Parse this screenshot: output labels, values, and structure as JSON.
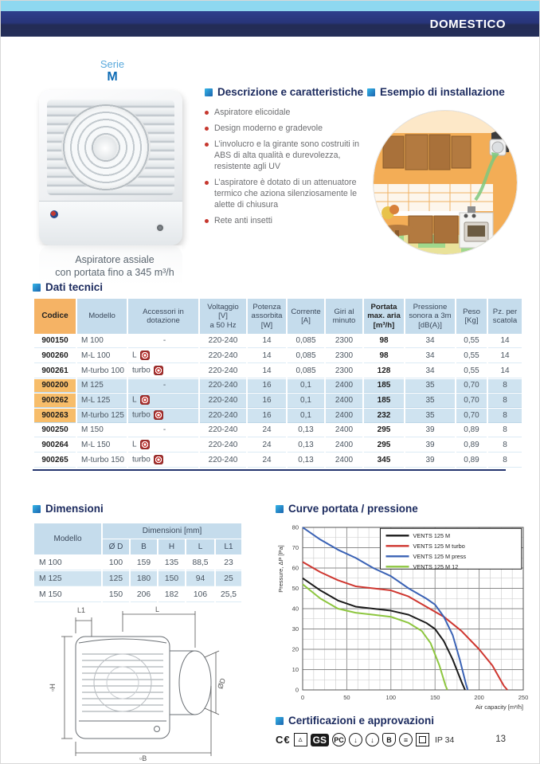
{
  "page": {
    "tag": "DOMESTICO",
    "number": "13"
  },
  "product": {
    "serie_label": "Serie",
    "serie_value": "M",
    "caption_line1": "Aspiratore assiale",
    "caption_line2": "con portata fino a 345 m³/h"
  },
  "sections": {
    "description": {
      "title": "Descrizione e caratteristiche",
      "bullets": [
        "Aspiratore elicoidale",
        "Design moderno e gradevole",
        "L’involucro e la girante sono costruiti in ABS di alta qualità e durevolezza, resistente agli UV",
        "L’aspiratore è dotato di un attenuatore termico che aziona silenziosamente le alette di chiusura",
        "Rete anti insetti"
      ]
    },
    "installation": {
      "title": "Esempio di installazione"
    },
    "technical": {
      "title": "Dati tecnici"
    },
    "dimensions": {
      "title": "Dimensioni"
    },
    "curves": {
      "title": "Curve portata / pressione"
    },
    "certifications": {
      "title": "Certificazioni e approvazioni",
      "marks": [
        {
          "name": "ce-mark",
          "glyph": "C€",
          "shape": "text"
        },
        {
          "name": "triangle-square-mark",
          "glyph": "▵",
          "shape": "square"
        },
        {
          "name": "gs-mark",
          "glyph": "GS",
          "shape": "text-bold"
        },
        {
          "name": "pct-mark",
          "glyph": "PC",
          "shape": "circle"
        },
        {
          "name": "down-arrow-mark-1",
          "glyph": "↓",
          "shape": "circle"
        },
        {
          "name": "down-arrow-mark-2",
          "glyph": "↓",
          "shape": "circle"
        },
        {
          "name": "b-shield-mark",
          "glyph": "B",
          "shape": "shield"
        },
        {
          "name": "coil-mark",
          "glyph": "≡",
          "shape": "circle"
        },
        {
          "name": "double-square-mark",
          "glyph": "",
          "shape": "square-double"
        },
        {
          "name": "ip-rating",
          "glyph": "IP 34",
          "shape": "plain"
        }
      ]
    }
  },
  "tech_table": {
    "headers": [
      "Codice",
      "Modello",
      "Accessori in\ndotazione",
      "Voltaggio\n[V]\na 50 Hz",
      "Potenza\nassorbita\n[W]",
      "Corrente\n[A]",
      "Giri al\nminuto",
      "Portata\nmax. aria\n[m³/h]",
      "Pressione\nsonora a 3m\n[dB(A)]",
      "Peso\n[Kg]",
      "Pz. per\nscatola"
    ],
    "rows": [
      {
        "code": "900150",
        "model": "M 100",
        "accessory": "-",
        "chip": false,
        "voltage": "220-240",
        "power": "14",
        "current": "0,085",
        "rpm": "2300",
        "flow": "98",
        "noise": "34",
        "weight": "0,55",
        "pieces": "14",
        "highlighted": false
      },
      {
        "code": "900260",
        "model": "M-L 100",
        "accessory": "L",
        "chip": true,
        "voltage": "220-240",
        "power": "14",
        "current": "0,085",
        "rpm": "2300",
        "flow": "98",
        "noise": "34",
        "weight": "0,55",
        "pieces": "14",
        "highlighted": false
      },
      {
        "code": "900261",
        "model": "M-turbo 100",
        "accessory": "turbo",
        "chip": true,
        "voltage": "220-240",
        "power": "14",
        "current": "0,085",
        "rpm": "2300",
        "flow": "128",
        "noise": "34",
        "weight": "0,55",
        "pieces": "14",
        "highlighted": false
      },
      {
        "code": "900200",
        "model": "M 125",
        "accessory": "-",
        "chip": false,
        "voltage": "220-240",
        "power": "16",
        "current": "0,1",
        "rpm": "2400",
        "flow": "185",
        "noise": "35",
        "weight": "0,70",
        "pieces": "8",
        "highlighted": true
      },
      {
        "code": "900262",
        "model": "M-L 125",
        "accessory": "L",
        "chip": true,
        "voltage": "220-240",
        "power": "16",
        "current": "0,1",
        "rpm": "2400",
        "flow": "185",
        "noise": "35",
        "weight": "0,70",
        "pieces": "8",
        "highlighted": true
      },
      {
        "code": "900263",
        "model": "M-turbo 125",
        "accessory": "turbo",
        "chip": true,
        "voltage": "220-240",
        "power": "16",
        "current": "0,1",
        "rpm": "2400",
        "flow": "232",
        "noise": "35",
        "weight": "0,70",
        "pieces": "8",
        "highlighted": true
      },
      {
        "code": "900250",
        "model": "M 150",
        "accessory": "-",
        "chip": false,
        "voltage": "220-240",
        "power": "24",
        "current": "0,13",
        "rpm": "2400",
        "flow": "295",
        "noise": "39",
        "weight": "0,89",
        "pieces": "8",
        "highlighted": false
      },
      {
        "code": "900264",
        "model": "M-L 150",
        "accessory": "L",
        "chip": true,
        "voltage": "220-240",
        "power": "24",
        "current": "0,13",
        "rpm": "2400",
        "flow": "295",
        "noise": "39",
        "weight": "0,89",
        "pieces": "8",
        "highlighted": false
      },
      {
        "code": "900265",
        "model": "M-turbo 150",
        "accessory": "turbo",
        "chip": true,
        "voltage": "220-240",
        "power": "24",
        "current": "0,13",
        "rpm": "2400",
        "flow": "345",
        "noise": "39",
        "weight": "0,89",
        "pieces": "8",
        "highlighted": false
      }
    ]
  },
  "dim_table": {
    "model_header": "Modello",
    "group_header": "Dimensioni [mm]",
    "sub_headers": [
      "Ø D",
      "B",
      "H",
      "L",
      "L1"
    ],
    "rows": [
      {
        "model": "M 100",
        "values": [
          "100",
          "159",
          "135",
          "88,5",
          "23"
        ],
        "highlighted": false
      },
      {
        "model": "M 125",
        "values": [
          "125",
          "180",
          "150",
          "94",
          "25"
        ],
        "highlighted": true
      },
      {
        "model": "M 150",
        "values": [
          "150",
          "206",
          "182",
          "106",
          "25,5"
        ],
        "highlighted": false
      }
    ]
  },
  "drawing_labels": {
    "l1": "L1",
    "l": "L",
    "h": "▫H",
    "d": "ØD",
    "b": "▫B"
  },
  "chart_data": {
    "type": "line",
    "title": "Curve portata / pressione",
    "xlabel": "Air capacity [m³/h]",
    "ylabel": "Pressure, ΔP [Pa]",
    "xlim": [
      0,
      250
    ],
    "ylim": [
      0,
      80
    ],
    "x_ticks": [
      0,
      50,
      100,
      150,
      200,
      250
    ],
    "y_ticks": [
      0,
      10,
      20,
      30,
      40,
      50,
      60,
      70,
      80
    ],
    "grid": true,
    "legend_position": "top-right",
    "series": [
      {
        "name": "VENTS 125 M",
        "color": "#1a1a1a",
        "points": [
          [
            0,
            55
          ],
          [
            20,
            49
          ],
          [
            40,
            44
          ],
          [
            60,
            41
          ],
          [
            80,
            40
          ],
          [
            100,
            39
          ],
          [
            120,
            37
          ],
          [
            140,
            33
          ],
          [
            150,
            30
          ],
          [
            160,
            24
          ],
          [
            170,
            15
          ],
          [
            180,
            4
          ],
          [
            184,
            0
          ]
        ]
      },
      {
        "name": "VENTS 125 M turbo",
        "color": "#cf3730",
        "points": [
          [
            0,
            63
          ],
          [
            20,
            58
          ],
          [
            40,
            54
          ],
          [
            60,
            51
          ],
          [
            80,
            50
          ],
          [
            100,
            49
          ],
          [
            120,
            46
          ],
          [
            140,
            41
          ],
          [
            160,
            36
          ],
          [
            180,
            29
          ],
          [
            200,
            20
          ],
          [
            215,
            12
          ],
          [
            228,
            2
          ],
          [
            232,
            0
          ]
        ]
      },
      {
        "name": "VENTS 125 M press",
        "color": "#3a62b5",
        "points": [
          [
            0,
            80
          ],
          [
            20,
            74
          ],
          [
            40,
            69
          ],
          [
            60,
            65
          ],
          [
            80,
            60
          ],
          [
            100,
            56
          ],
          [
            120,
            50
          ],
          [
            140,
            45
          ],
          [
            150,
            42
          ],
          [
            160,
            36
          ],
          [
            170,
            27
          ],
          [
            178,
            15
          ],
          [
            185,
            3
          ],
          [
            187,
            0
          ]
        ]
      },
      {
        "name": "VENTS 125 M 12",
        "color": "#8dc63f",
        "points": [
          [
            0,
            52
          ],
          [
            20,
            45
          ],
          [
            40,
            40
          ],
          [
            60,
            38
          ],
          [
            80,
            37
          ],
          [
            100,
            36
          ],
          [
            120,
            33
          ],
          [
            135,
            29
          ],
          [
            145,
            23
          ],
          [
            155,
            12
          ],
          [
            162,
            2
          ],
          [
            164,
            0
          ]
        ]
      }
    ]
  }
}
